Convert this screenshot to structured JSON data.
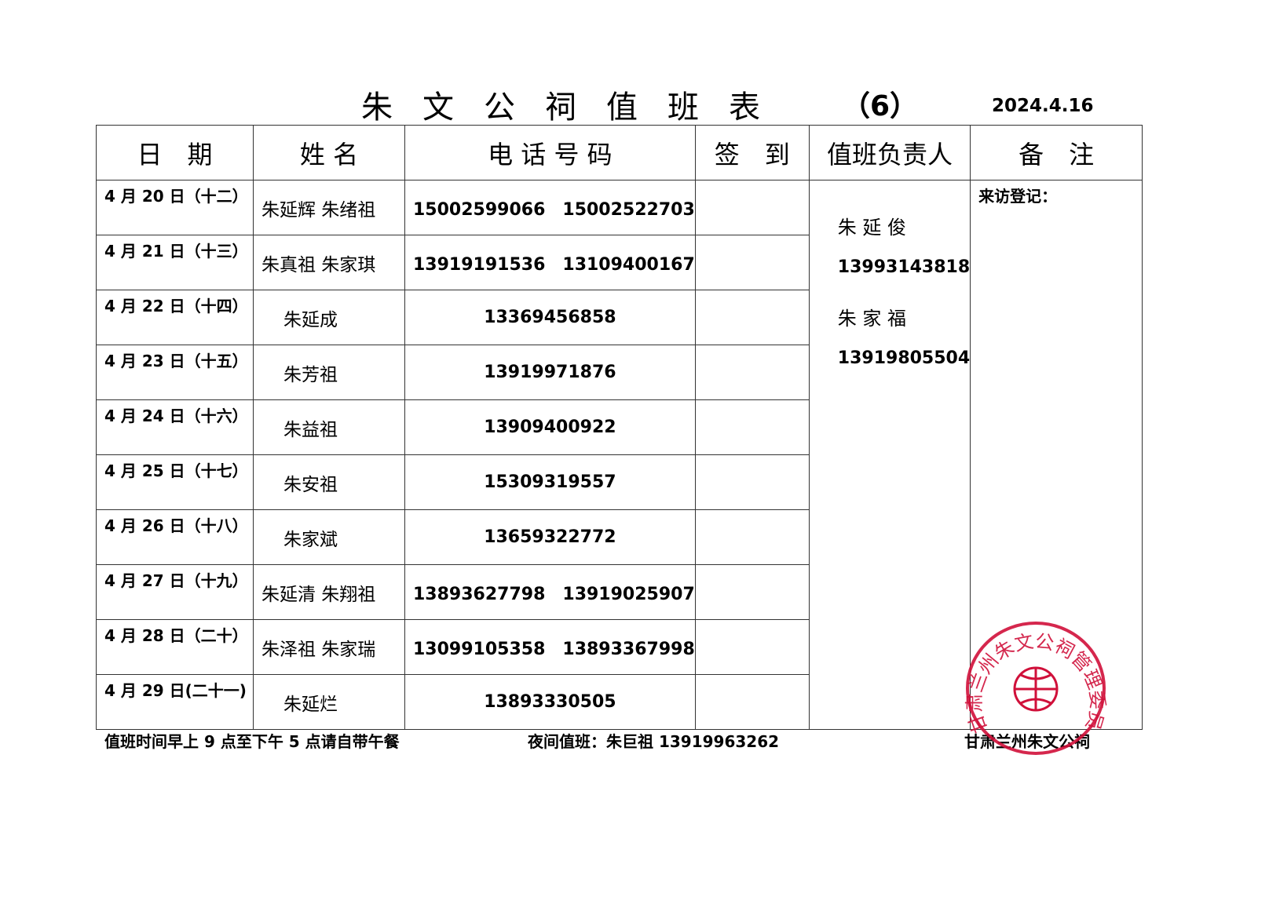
{
  "title": "朱文公祠值班表",
  "title_number": "（6）",
  "date": "2024.4.16",
  "headers": [
    "日　期",
    "姓 名",
    "电 话 号 码",
    "签　到",
    "值班负责人",
    "备　注"
  ],
  "rows": [
    {
      "date": "4 月 20 日（十二）",
      "names": "朱延辉 朱绪祖",
      "phones": "15002599066　15002522703"
    },
    {
      "date": "4 月 21 日（十三）",
      "names": "朱真祖 朱家琪",
      "phones": "13919191536　13109400167"
    },
    {
      "date": "4 月 22 日（十四）",
      "names": "朱延成",
      "phones": "13369456858"
    },
    {
      "date": "4 月 23 日（十五）",
      "names": "朱芳祖",
      "phones": "13919971876"
    },
    {
      "date": "4 月 24 日（十六）",
      "names": "朱益祖",
      "phones": "13909400922"
    },
    {
      "date": "4 月 25 日（十七）",
      "names": "朱安祖",
      "phones": "15309319557"
    },
    {
      "date": "4 月 26 日（十八）",
      "names": "朱家斌",
      "phones": "13659322772"
    },
    {
      "date": "4 月 27 日（十九）",
      "names": "朱延清 朱翔祖",
      "phones": "13893627798　13919025907"
    },
    {
      "date": "4 月 28 日（二十）",
      "names": "朱泽祖 朱家瑞",
      "phones": "13099105358　13893367998"
    },
    {
      "date": "4 月 29 日(二十一)",
      "names": "朱延烂",
      "phones": "13893330505"
    }
  ],
  "duty": {
    "name1": "朱 延 俊",
    "phone1": "13993143818",
    "name2": "朱 家 福",
    "phone2": "13919805504"
  },
  "note": "来访登记：",
  "footer": {
    "hours": "值班时间早上 9 点至下午 5 点请自带午餐",
    "night": "夜间值班：朱巨祖 13919963262",
    "org": "甘肃兰州朱文公祠"
  },
  "seal": {
    "text": "甘肃兰州朱文公祠管理委员会",
    "color": "#d0103a"
  }
}
